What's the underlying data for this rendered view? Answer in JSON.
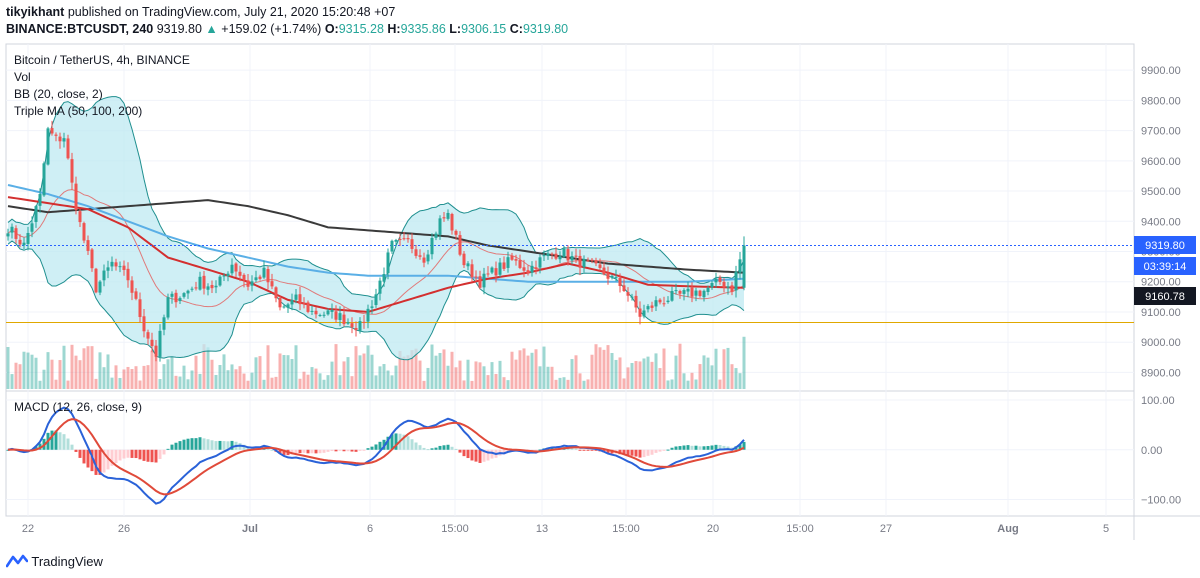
{
  "header": {
    "publisher": "tikyikhant",
    "publisher_suffix": "published on TradingView.com, July 21, 2020 15:20:48 +07",
    "symbol": "BINANCE:BTCUSDT, 240",
    "last": "9319.80",
    "change_arrow": "▲",
    "change": "+159.02 (+1.74%)",
    "ohlc": [
      {
        "label": "O:",
        "value": "9315.28"
      },
      {
        "label": "H:",
        "value": "9335.86"
      },
      {
        "label": "L:",
        "value": "9306.15"
      },
      {
        "label": "C:",
        "value": "9319.80"
      }
    ]
  },
  "legend": {
    "title": "Bitcoin / TetherUS, 4h, BINANCE",
    "volume": "Vol",
    "bollinger": "BB (20, close, 2)",
    "triple_ma": "Triple MA (50, 100, 200)",
    "macd": "MACD (12, 26, close, 9)"
  },
  "price_badges": {
    "last_price": "9319.80",
    "countdown": "03:39:14",
    "ma_value": "9160.78"
  },
  "colors": {
    "up": "#26a69a",
    "down": "#ef5350",
    "bb_fill": "#bfe9f2",
    "bb_line": "#1f8f8f",
    "ma_fast": "#d32f2f",
    "ma_mid": "#5aafe6",
    "ma_slow": "#3a3a3a",
    "support": "#e0a800",
    "macd_line": "#2a62d8",
    "signal_line": "#e04a3a",
    "badge_blue": "#2962ff",
    "badge_dark": "#131722",
    "axis_text": "#787b86"
  },
  "footer": {
    "brand": "TradingView",
    "logo_icon": "tradingview-logo-icon"
  },
  "chart_data": {
    "type": "candlestick",
    "title": "Bitcoin / TetherUS, 4h, BINANCE",
    "x_ticks": [
      "22",
      "26",
      "Jul",
      "6",
      "15:00",
      "13",
      "15:00",
      "20",
      "15:00",
      "27",
      "Aug",
      "5"
    ],
    "y_ticks": [
      "9900.00",
      "9800.00",
      "9700.00",
      "9600.00",
      "9500.00",
      "9400.00",
      "9300.00",
      "9200.00",
      "9100.00",
      "9000.00",
      "8900.00"
    ],
    "ylim": [
      8865,
      9960
    ],
    "macd_ticks": [
      "100.00",
      "0.00",
      "−100.00"
    ],
    "macd_ylim": [
      -125,
      110
    ],
    "support_level": 9065,
    "last_close": 9319.8,
    "countdown": "03:39:14",
    "close_anchors": [
      [
        0,
        9380
      ],
      [
        4,
        9320
      ],
      [
        8,
        9480
      ],
      [
        10,
        9700
      ],
      [
        12,
        9670
      ],
      [
        14,
        9680
      ],
      [
        16,
        9520
      ],
      [
        18,
        9390
      ],
      [
        22,
        9180
      ],
      [
        26,
        9260
      ],
      [
        30,
        9210
      ],
      [
        34,
        9050
      ],
      [
        37,
        8960
      ],
      [
        40,
        9140
      ],
      [
        44,
        9160
      ],
      [
        48,
        9200
      ],
      [
        52,
        9180
      ],
      [
        56,
        9260
      ],
      [
        60,
        9190
      ],
      [
        64,
        9230
      ],
      [
        68,
        9110
      ],
      [
        72,
        9140
      ],
      [
        76,
        9100
      ],
      [
        82,
        9090
      ],
      [
        88,
        9050
      ],
      [
        92,
        9160
      ],
      [
        96,
        9320
      ],
      [
        100,
        9330
      ],
      [
        104,
        9280
      ],
      [
        108,
        9400
      ],
      [
        110,
        9420
      ],
      [
        114,
        9260
      ],
      [
        118,
        9200
      ],
      [
        122,
        9240
      ],
      [
        126,
        9270
      ],
      [
        130,
        9240
      ],
      [
        134,
        9280
      ],
      [
        138,
        9300
      ],
      [
        142,
        9270
      ],
      [
        146,
        9250
      ],
      [
        150,
        9220
      ],
      [
        154,
        9180
      ],
      [
        158,
        9090
      ],
      [
        162,
        9130
      ],
      [
        166,
        9150
      ],
      [
        170,
        9160
      ],
      [
        174,
        9170
      ],
      [
        178,
        9200
      ],
      [
        181,
        9180
      ],
      [
        184,
        9319.8
      ]
    ],
    "ma_fast_anchors": [
      [
        0,
        9480
      ],
      [
        10,
        9460
      ],
      [
        20,
        9440
      ],
      [
        30,
        9380
      ],
      [
        40,
        9280
      ],
      [
        50,
        9240
      ],
      [
        60,
        9200
      ],
      [
        70,
        9140
      ],
      [
        80,
        9110
      ],
      [
        90,
        9100
      ],
      [
        100,
        9140
      ],
      [
        110,
        9180
      ],
      [
        120,
        9210
      ],
      [
        130,
        9230
      ],
      [
        140,
        9260
      ],
      [
        150,
        9230
      ],
      [
        160,
        9190
      ],
      [
        170,
        9185
      ],
      [
        184,
        9180
      ]
    ],
    "ma_mid_anchors": [
      [
        0,
        9520
      ],
      [
        10,
        9490
      ],
      [
        20,
        9450
      ],
      [
        30,
        9400
      ],
      [
        40,
        9350
      ],
      [
        50,
        9310
      ],
      [
        60,
        9280
      ],
      [
        70,
        9250
      ],
      [
        80,
        9230
      ],
      [
        90,
        9220
      ],
      [
        100,
        9220
      ],
      [
        110,
        9220
      ],
      [
        120,
        9210
      ],
      [
        130,
        9200
      ],
      [
        140,
        9200
      ],
      [
        150,
        9200
      ],
      [
        160,
        9200
      ],
      [
        170,
        9200
      ],
      [
        184,
        9210
      ]
    ],
    "ma_slow_anchors": [
      [
        0,
        9450
      ],
      [
        10,
        9430
      ],
      [
        20,
        9440
      ],
      [
        30,
        9450
      ],
      [
        40,
        9460
      ],
      [
        50,
        9470
      ],
      [
        60,
        9450
      ],
      [
        70,
        9420
      ],
      [
        80,
        9380
      ],
      [
        90,
        9370
      ],
      [
        100,
        9360
      ],
      [
        110,
        9350
      ],
      [
        120,
        9320
      ],
      [
        130,
        9300
      ],
      [
        140,
        9280
      ],
      [
        150,
        9260
      ],
      [
        160,
        9250
      ],
      [
        170,
        9240
      ],
      [
        184,
        9230
      ]
    ]
  }
}
